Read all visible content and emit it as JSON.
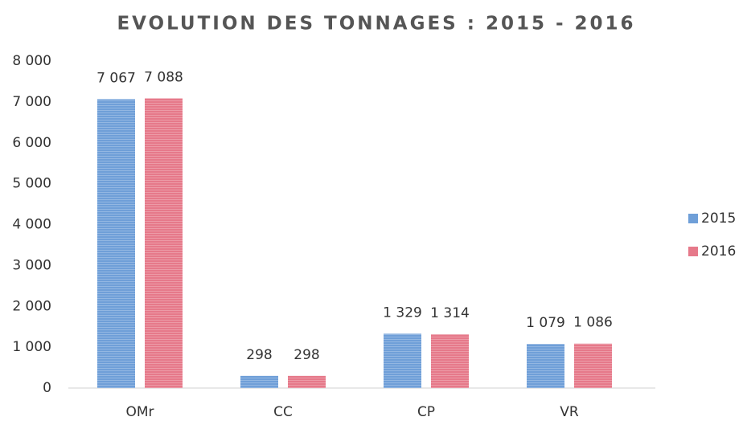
{
  "chart_data": {
    "type": "bar",
    "title": "EVOLUTION DES TONNAGES : 2015 - 2016",
    "categories": [
      "OMr",
      "CC",
      "CP",
      "VR"
    ],
    "series": [
      {
        "name": "2015",
        "color": "#6f9fd8",
        "values": [
          7067,
          298,
          1329,
          1079
        ],
        "value_labels": [
          "7 067",
          "298",
          "1 329",
          "1 079"
        ]
      },
      {
        "name": "2016",
        "color": "#e6798a",
        "values": [
          7088,
          298,
          1314,
          1086
        ],
        "value_labels": [
          "7 088",
          "298",
          "1 314",
          "1 086"
        ]
      }
    ],
    "ylim": [
      0,
      8000
    ],
    "yticks": [
      0,
      {
        "value": 1000,
        "label": "1 000"
      },
      {
        "value": 2000,
        "label": "2 000"
      },
      {
        "value": 3000,
        "label": "3 000"
      },
      {
        "value": 4000,
        "label": "4 000"
      },
      {
        "value": 5000,
        "label": "5 000"
      },
      {
        "value": 6000,
        "label": "6 000"
      },
      {
        "value": 7000,
        "label": "7 000"
      },
      {
        "value": 8000,
        "label": "8 000"
      }
    ],
    "grid": false,
    "legend": "right"
  }
}
